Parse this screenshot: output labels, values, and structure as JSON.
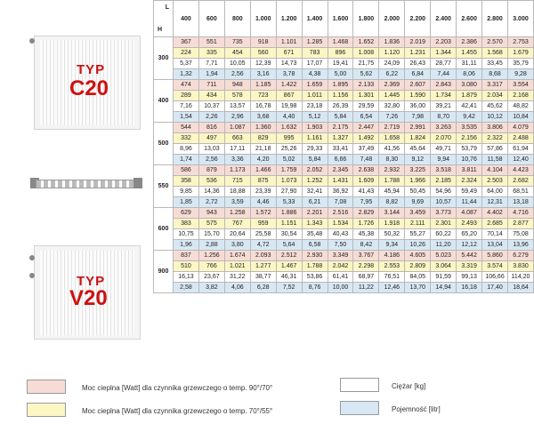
{
  "corner": {
    "l": "L",
    "h": "H"
  },
  "columns": [
    "400",
    "600",
    "800",
    "1.000",
    "1.200",
    "1.400",
    "1.600",
    "1.800",
    "2.000",
    "2.200",
    "2.400",
    "2.600",
    "2.800",
    "3.000"
  ],
  "groups": [
    {
      "h": "300",
      "rows": [
        [
          "367",
          "551",
          "735",
          "918",
          "1.101",
          "1.285",
          "1.468",
          "1.652",
          "1.836",
          "2.019",
          "2.203",
          "2.386",
          "2.570",
          "2.753"
        ],
        [
          "224",
          "335",
          "454",
          "560",
          "671",
          "783",
          "896",
          "1.008",
          "1.120",
          "1.231",
          "1.344",
          "1.455",
          "1.568",
          "1.679"
        ],
        [
          "5,37",
          "7,71",
          "10,05",
          "12,39",
          "14,73",
          "17,07",
          "19,41",
          "21,75",
          "24,09",
          "26,43",
          "28,77",
          "31,11",
          "33,45",
          "35,79"
        ],
        [
          "1,32",
          "1,94",
          "2,56",
          "3,16",
          "3,78",
          "4,38",
          "5,00",
          "5,62",
          "6,22",
          "6,84",
          "7,44",
          "8,06",
          "8,68",
          "9,28"
        ]
      ]
    },
    {
      "h": "400",
      "rows": [
        [
          "474",
          "711",
          "948",
          "1.185",
          "1.422",
          "1.659",
          "1.895",
          "2.133",
          "2.369",
          "2.607",
          "2.843",
          "3.080",
          "3.317",
          "3.554"
        ],
        [
          "289",
          "434",
          "578",
          "723",
          "867",
          "1.011",
          "1.156",
          "1.301",
          "1.445",
          "1.590",
          "1.734",
          "1.879",
          "2.034",
          "2.168"
        ],
        [
          "7,16",
          "10,37",
          "13,57",
          "16,78",
          "19,98",
          "23,18",
          "26,39",
          "29,59",
          "32,80",
          "36,00",
          "39,21",
          "42,41",
          "45,62",
          "48,82"
        ],
        [
          "1,54",
          "2,26",
          "2,96",
          "3,68",
          "4,40",
          "5,12",
          "5,84",
          "6,54",
          "7,26",
          "7,98",
          "8,70",
          "9,42",
          "10,12",
          "10,84"
        ]
      ]
    },
    {
      "h": "500",
      "rows": [
        [
          "544",
          "816",
          "1.087",
          "1.360",
          "1.632",
          "1.903",
          "2.175",
          "2.447",
          "2.719",
          "2.991",
          "3.263",
          "3.535",
          "3.806",
          "4.079"
        ],
        [
          "332",
          "497",
          "663",
          "829",
          "995",
          "1.161",
          "1.327",
          "1.492",
          "1.658",
          "1.824",
          "2.070",
          "2.156",
          "2.322",
          "2.488"
        ],
        [
          "8,96",
          "13,03",
          "17,11",
          "21,18",
          "25,26",
          "29,33",
          "33,41",
          "37,49",
          "41,56",
          "45,64",
          "49,71",
          "53,79",
          "57,86",
          "61,94"
        ],
        [
          "1,74",
          "2,56",
          "3,36",
          "4,20",
          "5,02",
          "5,84",
          "6,66",
          "7,48",
          "8,30",
          "9,12",
          "9,94",
          "10,76",
          "11,58",
          "12,40"
        ]
      ]
    },
    {
      "h": "550",
      "rows": [
        [
          "586",
          "879",
          "1.173",
          "1.466",
          "1.759",
          "2.052",
          "2.345",
          "2.638",
          "2.932",
          "3.225",
          "3.518",
          "3.811",
          "4.104",
          "4.423"
        ],
        [
          "358",
          "536",
          "715",
          "875",
          "1.073",
          "1.252",
          "1.431",
          "1.609",
          "1.788",
          "1.966",
          "2.185",
          "2.324",
          "2.503",
          "2.682"
        ],
        [
          "9,85",
          "14,36",
          "18,88",
          "23,39",
          "27,90",
          "32,41",
          "36,92",
          "41,43",
          "45,94",
          "50,45",
          "54,96",
          "59,49",
          "64,00",
          "68,51"
        ],
        [
          "1,85",
          "2,72",
          "3,59",
          "4,46",
          "5,33",
          "6,21",
          "7,08",
          "7,95",
          "8,82",
          "9,69",
          "10,57",
          "11,44",
          "12,31",
          "13,18"
        ]
      ]
    },
    {
      "h": "600",
      "rows": [
        [
          "629",
          "943",
          "1.258",
          "1.572",
          "1.886",
          "2.201",
          "2.516",
          "2.829",
          "3.144",
          "3.459",
          "3.773",
          "4.087",
          "4.402",
          "4.716"
        ],
        [
          "383",
          "575",
          "767",
          "959",
          "1.151",
          "1.343",
          "1.534",
          "1.726",
          "1.918",
          "2.111",
          "2.301",
          "2.493",
          "2.685",
          "2.877"
        ],
        [
          "10,75",
          "15,70",
          "20,64",
          "25,58",
          "30,54",
          "35,48",
          "40,43",
          "45,38",
          "50,32",
          "55,27",
          "60,22",
          "65,20",
          "70,14",
          "75,08"
        ],
        [
          "1,96",
          "2,88",
          "3,80",
          "4,72",
          "5,64",
          "6,58",
          "7,50",
          "8,42",
          "9,34",
          "10,26",
          "11,20",
          "12,12",
          "13,04",
          "13,96"
        ]
      ]
    },
    {
      "h": "900",
      "rows": [
        [
          "837",
          "1.256",
          "1.674",
          "2.093",
          "2.512",
          "2.930",
          "3.349",
          "3.767",
          "4.186",
          "4.605",
          "5.023",
          "5.442",
          "5.860",
          "6.279"
        ],
        [
          "510",
          "766",
          "1.021",
          "1.277",
          "1.467",
          "1.788",
          "2.042",
          "2.298",
          "2.553",
          "2.809",
          "3.064",
          "3.319",
          "3.574",
          "3.830"
        ],
        [
          "16,13",
          "23,67",
          "31,22",
          "38,77",
          "46,31",
          "53,86",
          "61,41",
          "68,97",
          "76,51",
          "84,05",
          "91,59",
          "99,13",
          "106,66",
          "114,20"
        ],
        [
          "2,58",
          "3,82",
          "4,06",
          "6,28",
          "7,52",
          "8,76",
          "10,00",
          "11,22",
          "12,46",
          "13,70",
          "14,94",
          "16,18",
          "17,40",
          "18,64"
        ]
      ]
    }
  ],
  "left": {
    "typ1": "TYP",
    "model1": "C20",
    "typ2": "TYP",
    "model2": "V20"
  },
  "legend": {
    "item1": "Moc cieplna [Watt] dla czynnika grzewczego o temp. 90°/70°",
    "item2": "Moc cieplna [Watt] dla czynnika grzewczego o temp. 70°/55°",
    "item3": "Ciężar [kg]",
    "item4": "Pojemność [litr]"
  },
  "colors": {
    "row_power_90": "#f7dcd6",
    "row_power_70": "#fbf6c4",
    "row_weight": "#ffffff",
    "row_capacity": "#d7e8f4",
    "accent": "#cc1111"
  }
}
